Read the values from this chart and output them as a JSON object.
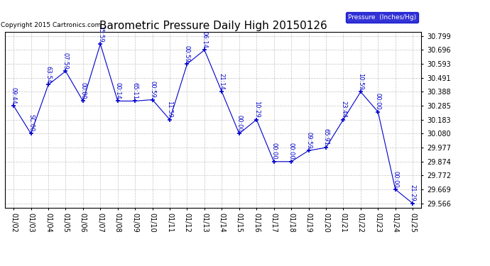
{
  "title": "Barometric Pressure Daily High 20150126",
  "copyright": "Copyright 2015 Cartronics.com",
  "legend_label": "Pressure  (Inches/Hg)",
  "x_labels": [
    "01/02",
    "01/03",
    "01/04",
    "01/05",
    "01/06",
    "01/07",
    "01/08",
    "01/09",
    "01/10",
    "01/11",
    "01/12",
    "01/13",
    "01/14",
    "01/15",
    "01/16",
    "01/17",
    "01/18",
    "01/19",
    "01/20",
    "01/21",
    "01/22",
    "01/23",
    "01/24",
    "01/25"
  ],
  "y_values": [
    30.285,
    30.08,
    30.44,
    30.54,
    30.32,
    30.74,
    30.32,
    30.32,
    30.33,
    30.183,
    30.593,
    30.696,
    30.388,
    30.08,
    30.183,
    29.874,
    29.874,
    29.955,
    29.977,
    30.183,
    30.388,
    30.24,
    29.669,
    29.566
  ],
  "time_labels": [
    "09:44",
    "SC:00",
    "63:54",
    "07:59",
    "00:00",
    "15:59",
    "00:14",
    "65:11",
    "00:59",
    "11:59",
    "00:59",
    "06:14",
    "21:14",
    "00:00",
    "10:29",
    "00:00",
    "00:00",
    "09:59",
    "65:91",
    "23:44",
    "10:59",
    "00:00",
    "00:00",
    "21:29"
  ],
  "ylim_min": 29.536,
  "ylim_max": 30.829,
  "y_ticks": [
    29.566,
    29.669,
    29.772,
    29.874,
    29.977,
    30.08,
    30.183,
    30.285,
    30.388,
    30.491,
    30.593,
    30.696,
    30.799
  ],
  "line_color": "#0000cc",
  "marker_color": "#0000cc",
  "bg_color": "#ffffff",
  "plot_bg_color": "#ffffff",
  "grid_color": "#aaaaaa",
  "title_color": "#000000",
  "copyright_color": "#000000",
  "legend_bg_color": "#0000cc",
  "legend_text_color": "#ffffff",
  "label_color": "#0000cc",
  "title_fontsize": 11,
  "copyright_fontsize": 6.5,
  "tick_fontsize": 7,
  "label_fontsize": 6
}
